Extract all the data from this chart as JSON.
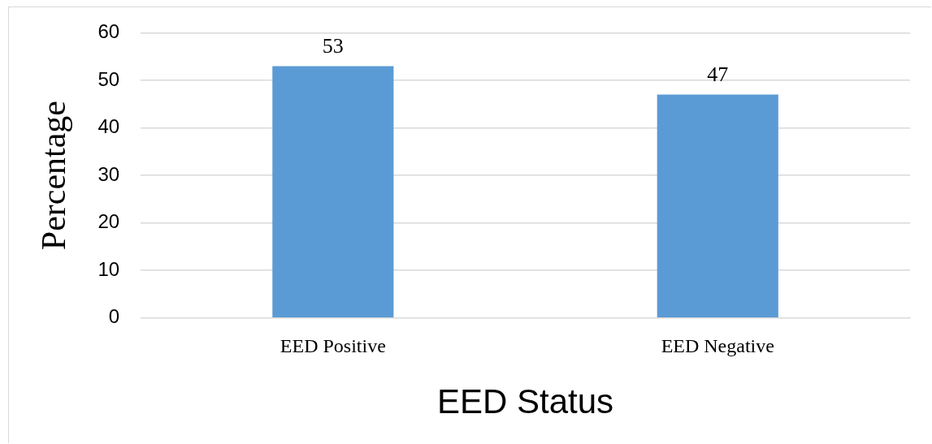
{
  "chart_data": {
    "type": "bar",
    "xlabel": "EED Status",
    "ylabel": "Percentage",
    "categories": [
      "EED Positive",
      "EED Negative"
    ],
    "series": [
      {
        "color": "#5b9bd5",
        "values": [
          53,
          47
        ]
      }
    ],
    "ylim": [
      0,
      60
    ],
    "yticks": [
      0,
      10,
      20,
      30,
      40,
      50,
      60
    ],
    "grid": "y",
    "data_labels": true,
    "legend": false
  }
}
